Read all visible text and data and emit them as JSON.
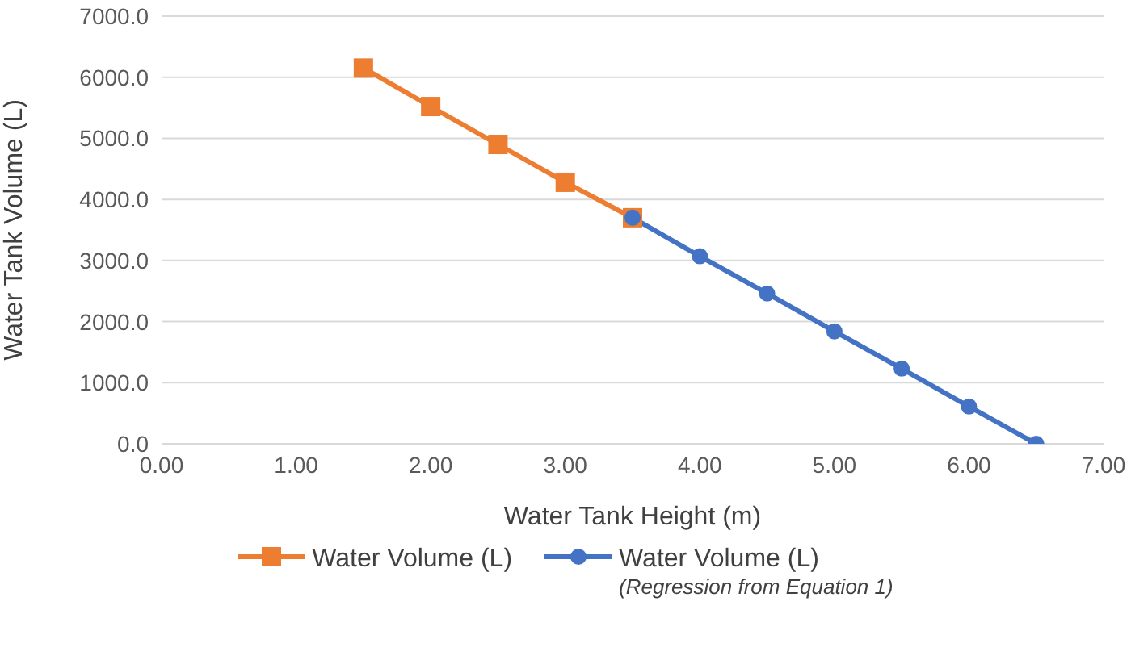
{
  "chart_data": {
    "type": "line",
    "xlabel": "Water Tank Height (m)",
    "ylabel": "Water Tank Volume (L)",
    "xlim": [
      0,
      7
    ],
    "xticks": [
      {
        "value": 0,
        "label": "0.00"
      },
      {
        "value": 1,
        "label": "1.00"
      },
      {
        "value": 2,
        "label": "2.00"
      },
      {
        "value": 3,
        "label": "3.00"
      },
      {
        "value": 4,
        "label": "4.00"
      },
      {
        "value": 5,
        "label": "5.00"
      },
      {
        "value": 6,
        "label": "6.00"
      },
      {
        "value": 7,
        "label": "7.00"
      }
    ],
    "ylim": [
      0,
      7000
    ],
    "yticks": [
      {
        "value": 0,
        "label": "0.0"
      },
      {
        "value": 1000,
        "label": "1000.0"
      },
      {
        "value": 2000,
        "label": "2000.0"
      },
      {
        "value": 3000,
        "label": "3000.0"
      },
      {
        "value": 4000,
        "label": "4000.0"
      },
      {
        "value": 5000,
        "label": "5000.0"
      },
      {
        "value": 6000,
        "label": "6000.0"
      },
      {
        "value": 7000,
        "label": "7000.0"
      }
    ],
    "grid": "y",
    "legend": "bottom",
    "line_style": "solid",
    "series": [
      {
        "name": "Water Volume (L)",
        "color": "#ed7d31",
        "marker": "square",
        "x": [
          1.5,
          2,
          2.5,
          3,
          3.5
        ],
        "values": [
          6150,
          5520,
          4900,
          4280,
          3700
        ]
      },
      {
        "name": "Water Volume (L)\n(Regression from Equation 1)",
        "color": "#4472c4",
        "marker": "circle",
        "x": [
          3.5,
          4,
          4.5,
          5,
          5.5,
          6,
          6.5
        ],
        "values": [
          3700,
          3070,
          2460,
          1840,
          1230,
          610,
          0
        ]
      }
    ]
  }
}
